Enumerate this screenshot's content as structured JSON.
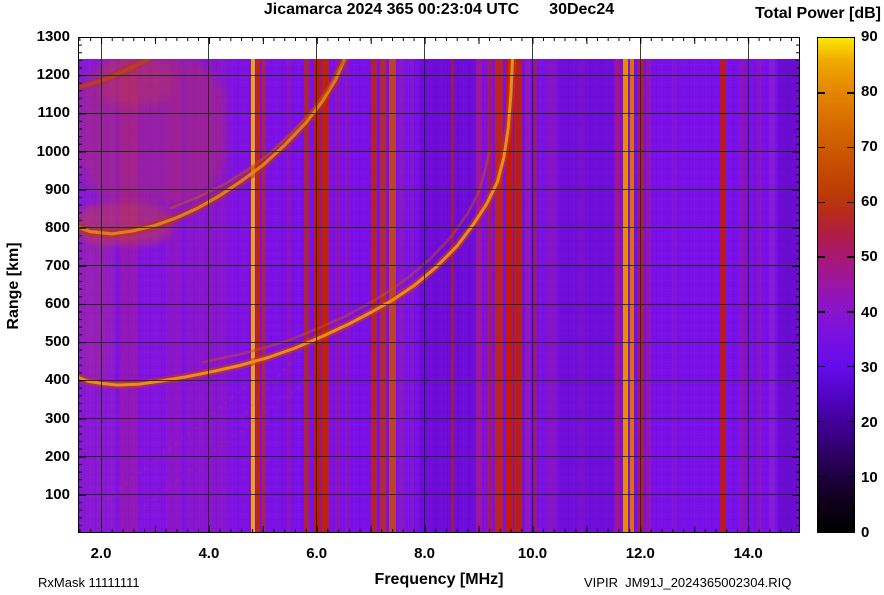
{
  "title": {
    "main": "Jicamarca 2024 365 00:23:04 UTC",
    "date": "30Dec24",
    "colorbar": "Total Power [dB]"
  },
  "footer": {
    "left": "RxMask 11111111",
    "right": "VIPIR  JM91J_2024365002304.RIQ"
  },
  "axes": {
    "x": {
      "label": "Frequency [MHz]",
      "labels": [
        "2.0",
        "4.0",
        "6.0",
        "8.0",
        "10.0",
        "12.0",
        "14.0"
      ],
      "values": [
        2,
        4,
        6,
        8,
        10,
        12,
        14
      ],
      "minor_step_mhz": 0.2
    },
    "y": {
      "label": "Range [km]",
      "labels": [
        "1300",
        "1200",
        "1100",
        "1000",
        "900",
        "800",
        "700",
        "600",
        "500",
        "400",
        "300",
        "200",
        "100"
      ],
      "values": [
        1300,
        1200,
        1100,
        1000,
        900,
        800,
        700,
        600,
        500,
        400,
        300,
        200,
        100
      ],
      "minor_step_km": 20
    },
    "z": {
      "labels": [
        "90",
        "80",
        "70",
        "60",
        "50",
        "40",
        "30",
        "20",
        "10",
        "0"
      ],
      "values": [
        90,
        80,
        70,
        60,
        50,
        40,
        30,
        20,
        10,
        0
      ]
    }
  },
  "colors": {
    "background_violet": "#7A10E8",
    "grid": "rgba(22,42,10,0.88)",
    "frame": "#000000"
  },
  "chart_data": {
    "type": "heatmap",
    "title": "Jicamarca 2024 365 00:23:04 UTC 30Dec24",
    "xlabel": "Frequency [MHz]",
    "ylabel": "Range [km]",
    "zlabel": "Total Power [dB]",
    "xlim": [
      1.574,
      14.96
    ],
    "ylim": [
      0,
      1300
    ],
    "zlim": [
      0,
      90
    ],
    "grid": true,
    "data_top_km": 1243,
    "background_level_dB": 30,
    "palette": [
      {
        "v": 0,
        "c": "#000000"
      },
      {
        "v": 6,
        "c": "#10001e"
      },
      {
        "v": 12,
        "c": "#260051"
      },
      {
        "v": 18,
        "c": "#3b0087"
      },
      {
        "v": 24,
        "c": "#4f03bd"
      },
      {
        "v": 30,
        "c": "#650cea"
      },
      {
        "v": 36,
        "c": "#7a11e0"
      },
      {
        "v": 42,
        "c": "#8f14c0"
      },
      {
        "v": 46,
        "c": "#9d169c"
      },
      {
        "v": 50,
        "c": "#a81874"
      },
      {
        "v": 54,
        "c": "#b01c48"
      },
      {
        "v": 58,
        "c": "#b62a1c"
      },
      {
        "v": 62,
        "c": "#bd3c04"
      },
      {
        "v": 68,
        "c": "#c95200"
      },
      {
        "v": 74,
        "c": "#d66a00"
      },
      {
        "v": 80,
        "c": "#e38500"
      },
      {
        "v": 86,
        "c": "#f0ab00"
      },
      {
        "v": 90,
        "c": "#fde800"
      }
    ],
    "rfi_stripes": [
      {
        "f0": 1.574,
        "f1": 2.25,
        "color": "rgba(220,80,140,0.10)",
        "opacity": 1
      },
      {
        "f0": 2.35,
        "f1": 2.68,
        "color": "rgba(200,40,60,0.22)",
        "opacity": 1
      },
      {
        "f0": 3.22,
        "f1": 3.48,
        "color": "rgba(200,40,90,0.15)",
        "opacity": 1
      },
      {
        "f0": 3.6,
        "f1": 4.35,
        "color": "rgba(200,50,70,0.10)",
        "opacity": 1
      },
      {
        "f0": 7.9,
        "f1": 8.95,
        "color": "rgba(70,0,160,0.22)",
        "opacity": 1
      },
      {
        "f0": 10.5,
        "f1": 11.5,
        "color": "rgba(60,0,150,0.18)",
        "opacity": 1
      },
      {
        "f0": 14.55,
        "f1": 14.96,
        "color": "rgba(60,0,140,0.25)",
        "opacity": 1
      },
      {
        "f0": 4.78,
        "f1": 4.85,
        "color": "#F2A300",
        "opacity": 1
      },
      {
        "f0": 4.87,
        "f1": 4.95,
        "color": "#C22700",
        "opacity": 0.9
      },
      {
        "f0": 4.99,
        "f1": 5.05,
        "color": "#BE2A08",
        "opacity": 0.8
      },
      {
        "f0": 5.45,
        "f1": 5.52,
        "color": "rgba(170,30,120,0.35)",
        "opacity": 1
      },
      {
        "f0": 5.76,
        "f1": 5.85,
        "color": "#B52A10",
        "opacity": 0.8
      },
      {
        "f0": 5.95,
        "f1": 6.07,
        "color": "#C21C00",
        "opacity": 0.95
      },
      {
        "f0": 6.1,
        "f1": 6.22,
        "color": "#C22400",
        "opacity": 0.9
      },
      {
        "f0": 6.34,
        "f1": 6.43,
        "color": "rgba(175,25,125,0.45)",
        "opacity": 1
      },
      {
        "f0": 6.53,
        "f1": 6.62,
        "color": "rgba(165,30,140,0.35)",
        "opacity": 1
      },
      {
        "f0": 7.0,
        "f1": 7.11,
        "color": "#BC2610",
        "opacity": 0.85
      },
      {
        "f0": 7.18,
        "f1": 7.29,
        "color": "#C03010",
        "opacity": 0.8
      },
      {
        "f0": 7.34,
        "f1": 7.46,
        "color": "#C84A10",
        "opacity": 0.85
      },
      {
        "f0": 7.52,
        "f1": 7.64,
        "color": "rgba(155,40,150,0.40)",
        "opacity": 1
      },
      {
        "f0": 7.72,
        "f1": 7.8,
        "color": "rgba(150,40,160,0.30)",
        "opacity": 1
      },
      {
        "f0": 8.48,
        "f1": 8.54,
        "color": "#B01E24",
        "opacity": 0.75
      },
      {
        "f0": 8.95,
        "f1": 9.06,
        "color": "rgba(190,30,80,0.50)",
        "opacity": 1
      },
      {
        "f0": 9.15,
        "f1": 9.26,
        "color": "#B42038",
        "opacity": 0.7
      },
      {
        "f0": 9.31,
        "f1": 9.46,
        "color": "#C22610",
        "opacity": 0.9
      },
      {
        "f0": 9.5,
        "f1": 9.63,
        "color": "#C41C00",
        "opacity": 0.95
      },
      {
        "f0": 9.66,
        "f1": 9.81,
        "color": "#BE2200",
        "opacity": 0.85
      },
      {
        "f0": 9.86,
        "f1": 9.96,
        "color": "rgba(180,40,110,0.40)",
        "opacity": 1
      },
      {
        "f0": 10.03,
        "f1": 10.09,
        "color": "#B01E30",
        "opacity": 0.7
      },
      {
        "f0": 10.25,
        "f1": 10.46,
        "color": "rgba(160,30,130,0.30)",
        "opacity": 1
      },
      {
        "f0": 10.85,
        "f1": 10.96,
        "color": "rgba(145,30,170,0.30)",
        "opacity": 1
      },
      {
        "f0": 11.52,
        "f1": 11.63,
        "color": "#B8185C",
        "opacity": 0.65
      },
      {
        "f0": 11.68,
        "f1": 11.77,
        "color": "#E88C00",
        "opacity": 1
      },
      {
        "f0": 11.81,
        "f1": 11.89,
        "color": "#DE7800",
        "opacity": 0.95
      },
      {
        "f0": 11.96,
        "f1": 12.06,
        "color": "#B42222",
        "opacity": 0.8
      },
      {
        "f0": 12.1,
        "f1": 12.19,
        "color": "rgba(170,30,110,0.45)",
        "opacity": 1
      },
      {
        "f0": 12.6,
        "f1": 12.68,
        "color": "rgba(150,35,160,0.25)",
        "opacity": 1
      },
      {
        "f0": 13.48,
        "f1": 13.59,
        "color": "#BC1C10",
        "opacity": 0.9
      },
      {
        "f0": 13.85,
        "f1": 13.96,
        "color": "rgba(170,25,125,0.40)",
        "opacity": 1
      },
      {
        "f0": 14.15,
        "f1": 14.26,
        "color": "rgba(160,30,145,0.35)",
        "opacity": 1
      },
      {
        "f0": 14.38,
        "f1": 14.49,
        "color": "rgba(155,50,185,0.35)",
        "opacity": 1
      }
    ],
    "hazes": [
      {
        "f0": 1.6,
        "f1": 4.3,
        "r0": 860,
        "r1": 1250,
        "color": "rgba(205,60,25,0.28)",
        "blur": 5
      },
      {
        "f0": 2.0,
        "f1": 3.3,
        "r0": 1120,
        "r1": 1250,
        "color": "rgba(210,70,30,0.25)",
        "blur": 5
      },
      {
        "f0": 1.574,
        "f1": 3.3,
        "r0": 755,
        "r1": 865,
        "color": "rgba(215,75,20,0.40)",
        "blur": 4
      },
      {
        "f0": 1.574,
        "f1": 2.2,
        "r0": 390,
        "r1": 790,
        "color": "rgba(205,60,70,0.20)",
        "blur": 5
      }
    ],
    "traces": [
      {
        "name": "F-region 1st hop O-mode",
        "color": "#EE9218",
        "width": 3,
        "opacity": 0.95,
        "glow": "#C33F00",
        "glow_width": 7.5,
        "glow_opacity": 0.55,
        "points": [
          [
            1.57,
            408
          ],
          [
            1.75,
            398
          ],
          [
            2.0,
            392
          ],
          [
            2.3,
            388
          ],
          [
            2.7,
            390
          ],
          [
            3.1,
            398
          ],
          [
            3.6,
            410
          ],
          [
            4.1,
            424
          ],
          [
            4.6,
            440
          ],
          [
            5.1,
            460
          ],
          [
            5.6,
            485
          ],
          [
            6.1,
            515
          ],
          [
            6.6,
            548
          ],
          [
            7.0,
            578
          ],
          [
            7.4,
            610
          ],
          [
            7.8,
            648
          ],
          [
            8.2,
            695
          ],
          [
            8.6,
            752
          ],
          [
            8.9,
            808
          ],
          [
            9.15,
            862
          ],
          [
            9.35,
            920
          ],
          [
            9.47,
            985
          ],
          [
            9.55,
            1060
          ],
          [
            9.6,
            1150
          ],
          [
            9.63,
            1243
          ]
        ]
      },
      {
        "name": "F-region 1st hop X-mode",
        "color": "#C6500E",
        "width": 2.6,
        "opacity": 0.5,
        "glow": null,
        "glow_width": 0,
        "glow_opacity": 0,
        "points": [
          [
            3.9,
            448
          ],
          [
            4.5,
            466
          ],
          [
            5.0,
            484
          ],
          [
            5.5,
            506
          ],
          [
            6.0,
            535
          ],
          [
            6.5,
            566
          ],
          [
            6.9,
            596
          ],
          [
            7.3,
            630
          ],
          [
            7.7,
            670
          ],
          [
            8.1,
            718
          ],
          [
            8.5,
            778
          ],
          [
            8.8,
            838
          ],
          [
            9.0,
            892
          ],
          [
            9.12,
            950
          ],
          [
            9.2,
            1000
          ]
        ]
      },
      {
        "name": "F-region 2nd hop",
        "color": "#E08A16",
        "width": 3.2,
        "opacity": 0.9,
        "glow": "#B93400",
        "glow_width": 9,
        "glow_opacity": 0.5,
        "points": [
          [
            1.57,
            802
          ],
          [
            1.8,
            790
          ],
          [
            2.2,
            784
          ],
          [
            2.6,
            792
          ],
          [
            3.0,
            806
          ],
          [
            3.4,
            826
          ],
          [
            3.8,
            852
          ],
          [
            4.2,
            884
          ],
          [
            4.6,
            922
          ],
          [
            5.0,
            964
          ],
          [
            5.4,
            1016
          ],
          [
            5.8,
            1075
          ],
          [
            6.1,
            1130
          ],
          [
            6.35,
            1188
          ],
          [
            6.52,
            1243
          ]
        ]
      },
      {
        "name": "F-region 2nd hop companion",
        "color": "#C4560E",
        "width": 2.6,
        "opacity": 0.55,
        "glow": null,
        "glow_width": 0,
        "glow_opacity": 0,
        "points": [
          [
            3.3,
            852
          ],
          [
            3.8,
            880
          ],
          [
            4.3,
            915
          ],
          [
            4.7,
            950
          ],
          [
            5.1,
            992
          ],
          [
            5.5,
            1044
          ],
          [
            5.9,
            1104
          ],
          [
            6.2,
            1162
          ],
          [
            6.42,
            1220
          ],
          [
            6.55,
            1243
          ]
        ]
      },
      {
        "name": "F-region 3rd hop fragment",
        "color": "#C64A08",
        "width": 4,
        "opacity": 0.55,
        "glow": "#B03000",
        "glow_width": 8,
        "glow_opacity": 0.3,
        "points": [
          [
            1.57,
            1168
          ],
          [
            1.9,
            1180
          ],
          [
            2.2,
            1196
          ],
          [
            2.5,
            1216
          ],
          [
            2.75,
            1232
          ],
          [
            2.9,
            1243
          ]
        ]
      }
    ],
    "diagonals": [
      {
        "points": [
          [
            2.0,
            75
          ],
          [
            5.0,
            420
          ]
        ],
        "color": "rgba(205,70,45,0.55)",
        "opacity": 0.3
      },
      {
        "points": [
          [
            2.7,
            60
          ],
          [
            6.1,
            430
          ]
        ],
        "color": "rgba(205,70,45,0.55)",
        "opacity": 0.28
      },
      {
        "points": [
          [
            4.6,
            300
          ],
          [
            6.0,
            525
          ]
        ],
        "color": "rgba(205,70,45,0.55)",
        "opacity": 0.3
      }
    ]
  }
}
